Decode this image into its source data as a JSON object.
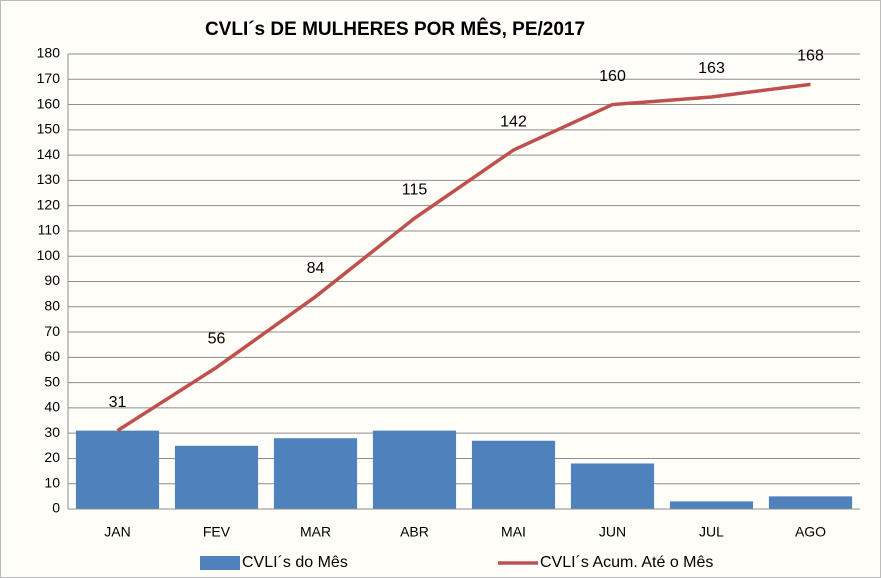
{
  "chart_data": {
    "type": "bar",
    "title": "CVLI´s DE MULHERES POR MÊS, PE/2017",
    "categories": [
      "JAN",
      "FEV",
      "MAR",
      "ABR",
      "MAI",
      "JUN",
      "JUL",
      "AGO"
    ],
    "series": [
      {
        "name": "CVLI´s do Mês",
        "type": "bar",
        "color": "#4f81bd",
        "values": [
          31,
          25,
          28,
          31,
          27,
          18,
          3,
          5
        ]
      },
      {
        "name": "CVLI´s Acum. Até o Mês",
        "type": "line",
        "color": "#c0504d",
        "values": [
          31,
          56,
          84,
          115,
          142,
          160,
          163,
          168
        ],
        "data_labels": true
      }
    ],
    "ylim": [
      0,
      180
    ],
    "yticks": [
      0,
      10,
      20,
      30,
      40,
      50,
      60,
      70,
      80,
      90,
      100,
      110,
      120,
      130,
      140,
      150,
      160,
      170,
      180
    ],
    "grid": true,
    "legend": "bottom"
  }
}
